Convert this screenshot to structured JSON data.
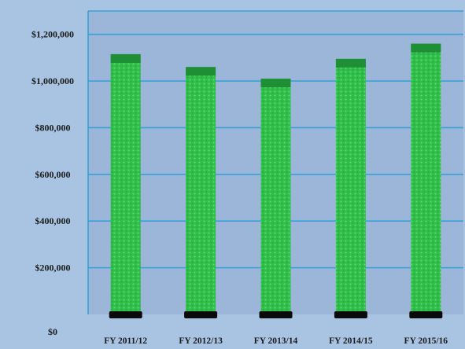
{
  "chart_data": {
    "type": "bar",
    "categories": [
      "FY 2011/12",
      "FY 2012/13",
      "FY 2013/14",
      "FY 2014/15",
      "FY 2015/16"
    ],
    "values": [
      1115000,
      1060000,
      1010000,
      1095000,
      1160000
    ],
    "ylim": [
      0,
      1300000
    ],
    "yticks": [
      0,
      200000,
      400000,
      600000,
      800000,
      1000000,
      1200000
    ],
    "ytick_labels": [
      "$0",
      "$200,000",
      "$400,000",
      "$600,000",
      "$800,000",
      "$1,000,000",
      "$1,200,000"
    ],
    "grid": true,
    "legend": "none",
    "colors": {
      "background": "#a9c4e2",
      "plot_area": "#9bb6d8",
      "gridline": "#3aa0d8",
      "bar_fill": "#2fbf4a",
      "bar_top": "#1e8f34",
      "base_marker": "#0a0a0a"
    }
  }
}
